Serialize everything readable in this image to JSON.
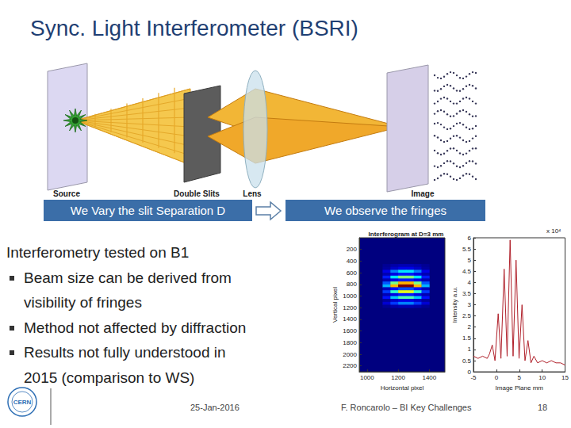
{
  "title": "Sync. Light Interferometer (BSRI)",
  "diagram": {
    "labels": {
      "source": "Source",
      "slits": "Double Slits",
      "lens": "Lens",
      "image": "Image"
    }
  },
  "banners": {
    "left": "We Vary the slit Separation D",
    "right": "We observe the fringes"
  },
  "body": {
    "heading": "Interferometry tested on B1",
    "bullets": [
      [
        "Beam size can be derived from",
        "visibility of fringes"
      ],
      [
        "Method not affected by diffraction"
      ],
      [
        "Results not fully understood in",
        "2015 (comparison to WS)"
      ]
    ]
  },
  "chart_data": [
    {
      "type": "heatmap",
      "title": "Interferogram at D=3 mm",
      "xlabel": "Horizontal pixel",
      "ylabel": "Vertical pixel",
      "xlim": [
        950,
        1500
      ],
      "xticks": [
        1000,
        1200,
        1400
      ],
      "ylim": [
        2300,
        0
      ],
      "yticks": [
        200,
        400,
        600,
        800,
        1000,
        1200,
        1400,
        1600,
        1800,
        2000,
        2200
      ],
      "x_edges": [
        1100,
        1150,
        1200,
        1250,
        1300,
        1350,
        1400
      ],
      "y_edges": [
        450,
        500,
        550,
        600,
        650,
        700,
        750,
        800,
        850,
        900,
        950,
        1000,
        1050,
        1100,
        1150,
        1200
      ],
      "z": [
        [
          0.02,
          0.04,
          0.05,
          0.05,
          0.04,
          0.02
        ],
        [
          0.03,
          0.07,
          0.1,
          0.1,
          0.07,
          0.03
        ],
        [
          0.1,
          0.25,
          0.35,
          0.35,
          0.25,
          0.1
        ],
        [
          0.05,
          0.1,
          0.15,
          0.15,
          0.1,
          0.05
        ],
        [
          0.15,
          0.35,
          0.5,
          0.5,
          0.35,
          0.15
        ],
        [
          0.05,
          0.1,
          0.15,
          0.15,
          0.1,
          0.05
        ],
        [
          0.21,
          0.49,
          0.7,
          0.7,
          0.49,
          0.21
        ],
        [
          0.3,
          0.7,
          1,
          1,
          0.7,
          0.3
        ],
        [
          0.06,
          0.14,
          0.2,
          0.2,
          0.14,
          0.06
        ],
        [
          0.18,
          0.42,
          0.6,
          0.6,
          0.42,
          0.18
        ],
        [
          0.05,
          0.1,
          0.15,
          0.15,
          0.1,
          0.05
        ],
        [
          0.14,
          0.32,
          0.45,
          0.45,
          0.32,
          0.14
        ],
        [
          0.03,
          0.07,
          0.1,
          0.1,
          0.07,
          0.03
        ],
        [
          0.08,
          0.18,
          0.25,
          0.25,
          0.18,
          0.08
        ],
        [
          0.02,
          0.04,
          0.05,
          0.05,
          0.04,
          0.02
        ]
      ],
      "zlim": [
        0,
        1
      ],
      "grid": false
    },
    {
      "type": "line",
      "xlabel": "Image Plane mm",
      "ylabel": "Intensity a.u.",
      "annotation": "x 10⁴",
      "x": [
        -5,
        -4,
        -3,
        -2,
        -1.5,
        -0.9,
        -0.3,
        0.4,
        1.0,
        1.7,
        2.35,
        3.0,
        3.65,
        4.3,
        4.95,
        5.6,
        6.25,
        6.9,
        7.55,
        8.2,
        9,
        10,
        11,
        12,
        13,
        14,
        15
      ],
      "values": [
        0.7,
        0.6,
        0.7,
        0.6,
        0.8,
        1.2,
        0.5,
        2.6,
        0.6,
        4.6,
        0.7,
        5.9,
        0.7,
        5.0,
        0.6,
        3.0,
        0.5,
        1.4,
        0.4,
        0.7,
        0.4,
        0.5,
        0.4,
        0.5,
        0.4,
        0.4,
        0.3
      ],
      "color": "#b0202a",
      "xlim": [
        -5,
        15
      ],
      "xticks": [
        -5,
        0,
        5,
        10,
        15
      ],
      "ylim": [
        0,
        6
      ],
      "yticks": [
        0,
        0.5,
        1,
        1.5,
        2,
        2.5,
        3,
        3.5,
        4,
        4.5,
        5,
        5.5,
        6
      ],
      "grid": false
    }
  ],
  "footer": {
    "logo": "CERN",
    "date": "25-Jan-2016",
    "author": "F. Roncarolo – BI Key Challenges",
    "page": "18"
  }
}
